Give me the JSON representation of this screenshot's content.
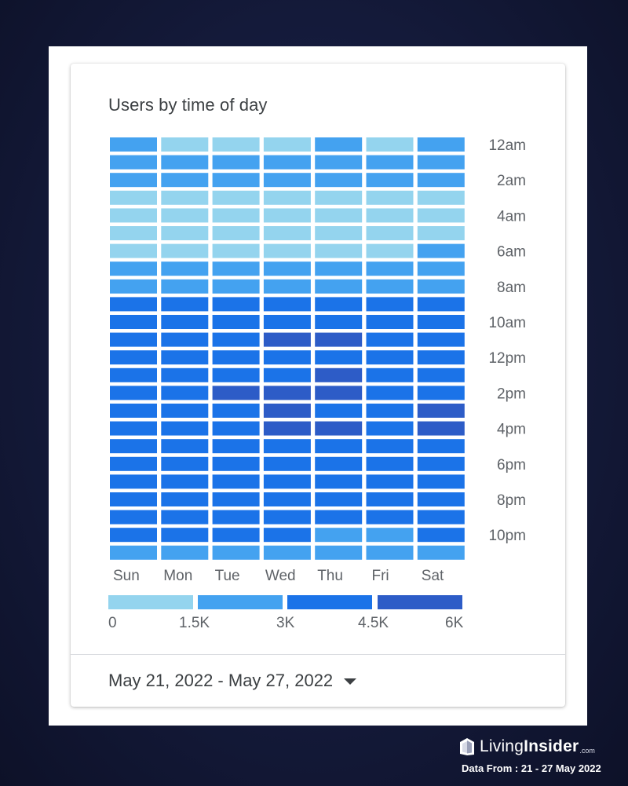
{
  "card": {
    "title": "Users by time of day",
    "date_range": "May 21, 2022 - May 27, 2022"
  },
  "legend": {
    "labels": [
      "0",
      "1.5K",
      "3K",
      "4.5K",
      "6K"
    ],
    "colors": [
      "#94d4ee",
      "#44a2f0",
      "#1b73e8",
      "#2d5cc7"
    ]
  },
  "brand": {
    "name_light": "Living",
    "name_bold": "Insider",
    "suffix": ".com",
    "note": "Data From : 21 - 27 May 2022"
  },
  "chart_data": {
    "type": "heatmap",
    "title": "Users by time of day",
    "x_labels": [
      "Sun",
      "Mon",
      "Tue",
      "Wed",
      "Thu",
      "Fri",
      "Sat"
    ],
    "y_labels": [
      "12am",
      "2am",
      "4am",
      "6am",
      "8am",
      "10am",
      "12pm",
      "2pm",
      "4pm",
      "6pm",
      "8pm",
      "10pm"
    ],
    "rows": [
      "12am",
      "1am",
      "2am",
      "3am",
      "4am",
      "5am",
      "6am",
      "7am",
      "8am",
      "9am",
      "10am",
      "11am",
      "12pm",
      "1pm",
      "2pm",
      "3pm",
      "4pm",
      "5pm",
      "6pm",
      "7pm",
      "8pm",
      "9pm",
      "10pm",
      "11pm"
    ],
    "color_scale": {
      "bin_edges": [
        0,
        1500,
        3000,
        4500,
        6000
      ],
      "bin_colors": [
        "#94d4ee",
        "#44a2f0",
        "#1b73e8",
        "#2d5cc7"
      ]
    },
    "values": [
      [
        2200,
        1200,
        1200,
        1200,
        2200,
        1200,
        2200
      ],
      [
        2200,
        2200,
        2200,
        2200,
        2200,
        2200,
        2200
      ],
      [
        2200,
        2200,
        2200,
        2200,
        2200,
        2200,
        2200
      ],
      [
        1000,
        1000,
        1000,
        1000,
        1000,
        1000,
        1000
      ],
      [
        1000,
        1000,
        1000,
        1000,
        1000,
        1000,
        1000
      ],
      [
        1000,
        1000,
        1000,
        1000,
        1000,
        1000,
        1000
      ],
      [
        1000,
        1000,
        1000,
        1000,
        1000,
        1000,
        2200
      ],
      [
        2200,
        2200,
        2200,
        2200,
        2200,
        2200,
        2200
      ],
      [
        2200,
        2200,
        2200,
        2200,
        2200,
        2200,
        2200
      ],
      [
        3700,
        3700,
        3700,
        3700,
        3700,
        3700,
        3700
      ],
      [
        3700,
        3700,
        3700,
        3700,
        3700,
        3700,
        3700
      ],
      [
        3700,
        3700,
        3700,
        5000,
        5000,
        3700,
        3700
      ],
      [
        3700,
        3700,
        3700,
        3700,
        3700,
        3700,
        3700
      ],
      [
        3700,
        3700,
        3700,
        3700,
        5000,
        3700,
        3700
      ],
      [
        3700,
        3700,
        5000,
        5000,
        5000,
        3700,
        3700
      ],
      [
        3700,
        3700,
        3700,
        5000,
        3700,
        3700,
        5000
      ],
      [
        3700,
        3700,
        3700,
        5000,
        5000,
        3700,
        5000
      ],
      [
        3700,
        3700,
        3700,
        3700,
        3700,
        3700,
        3700
      ],
      [
        3700,
        3700,
        3700,
        3700,
        3700,
        3700,
        3700
      ],
      [
        3700,
        3700,
        3700,
        3700,
        3700,
        3700,
        3700
      ],
      [
        3700,
        3700,
        3700,
        3700,
        3700,
        3700,
        3700
      ],
      [
        3700,
        3700,
        3700,
        3700,
        3700,
        3700,
        3700
      ],
      [
        3700,
        3700,
        3700,
        3700,
        2200,
        2200,
        3700
      ],
      [
        2200,
        2200,
        2200,
        2200,
        2200,
        2200,
        2200
      ]
    ],
    "grid": false
  }
}
